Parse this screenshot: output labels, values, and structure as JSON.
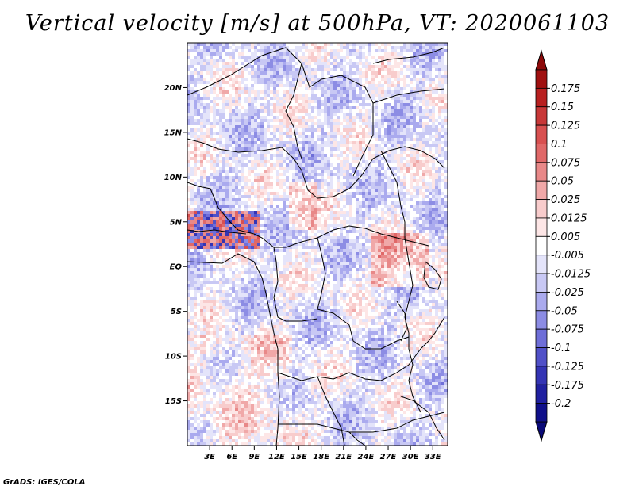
{
  "title": "Vertical velocity [m/s] at 500hPa, VT: 2020061103",
  "credit": "GrADS: IGES/COLA",
  "map": {
    "lat_labels": [
      "20N",
      "15N",
      "10N",
      "5N",
      "EQ",
      "5S",
      "10S",
      "15S"
    ],
    "lat_values": [
      20,
      15,
      10,
      5,
      0,
      -5,
      -10,
      -15
    ],
    "lon_labels": [
      "3E",
      "6E",
      "9E",
      "12E",
      "15E",
      "18E",
      "21E",
      "24E",
      "27E",
      "30E",
      "33E"
    ],
    "lon_values": [
      3,
      6,
      9,
      12,
      15,
      18,
      21,
      24,
      27,
      30,
      33
    ],
    "lon_range": [
      0,
      35
    ],
    "lat_range": [
      -20,
      25
    ]
  },
  "colorbar": {
    "labels": [
      "0.175",
      "0.15",
      "0.125",
      "0.1",
      "0.075",
      "0.05",
      "0.025",
      "0.0125",
      "0.005",
      "-0.005",
      "-0.0125",
      "-0.025",
      "-0.05",
      "-0.075",
      "-0.1",
      "-0.125",
      "-0.175",
      "-0.2"
    ],
    "colors": [
      "#a01010",
      "#b82020",
      "#c83838",
      "#d85050",
      "#e06868",
      "#e88888",
      "#f0a8a8",
      "#f8cccc",
      "#fde6e6",
      "#ffffff",
      "#e4e4fa",
      "#c8c8f4",
      "#aaaaee",
      "#8c8ce4",
      "#6e6ed8",
      "#5050c8",
      "#3434b4",
      "#2020a0",
      "#10108a"
    ],
    "top_arrow_color": "#8c0a0a",
    "bottom_arrow_color": "#0a0a78"
  }
}
